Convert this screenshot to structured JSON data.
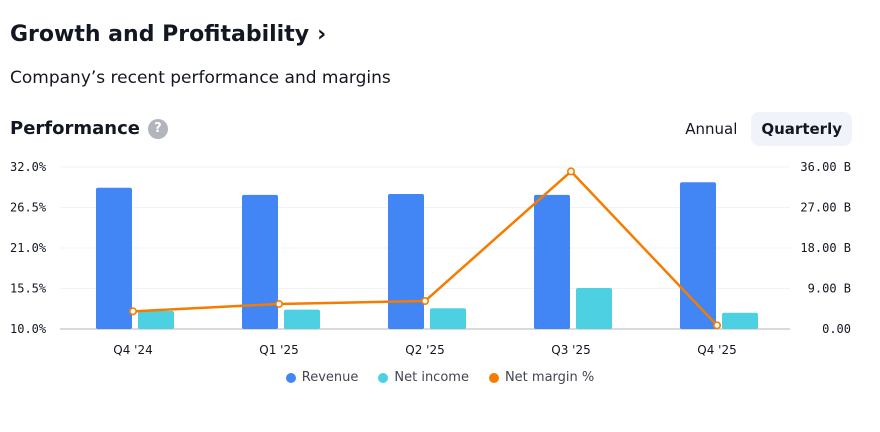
{
  "header": {
    "title": "Growth and Profitability",
    "subtitle": "Company’s recent performance and margins",
    "section_label": "Performance",
    "help_glyph": "?"
  },
  "period_toggle": {
    "options": [
      "Annual",
      "Quarterly"
    ],
    "selected": "Quarterly"
  },
  "colors": {
    "revenue": "#4285f4",
    "net_income": "#4dd0e1",
    "net_margin": "#f57c00"
  },
  "chart_data": {
    "type": "bar",
    "categories": [
      "Q4 '24",
      "Q1 '25",
      "Q2 '25",
      "Q3 '25",
      "Q4 '25"
    ],
    "series": [
      {
        "name": "Revenue",
        "type": "bar",
        "axis": "right",
        "values": [
          31.4,
          29.8,
          30.0,
          29.8,
          32.6
        ]
      },
      {
        "name": "Net income",
        "type": "bar",
        "axis": "right",
        "values": [
          4.0,
          4.3,
          4.6,
          9.1,
          3.6
        ]
      },
      {
        "name": "Net margin %",
        "type": "line",
        "axis": "left",
        "values": [
          12.4,
          13.4,
          13.8,
          31.4,
          10.5
        ]
      }
    ],
    "left_axis": {
      "ticks": [
        "32.0%",
        "26.5%",
        "21.0%",
        "15.5%",
        "10.0%"
      ],
      "ylim": [
        10.0,
        32.0
      ]
    },
    "right_axis": {
      "ticks": [
        "36.00 B",
        "27.00 B",
        "18.00 B",
        "9.00 B",
        "0.00"
      ],
      "ylim": [
        0,
        36
      ]
    },
    "legend": [
      "Revenue",
      "Net income",
      "Net margin %"
    ],
    "grid": true
  }
}
